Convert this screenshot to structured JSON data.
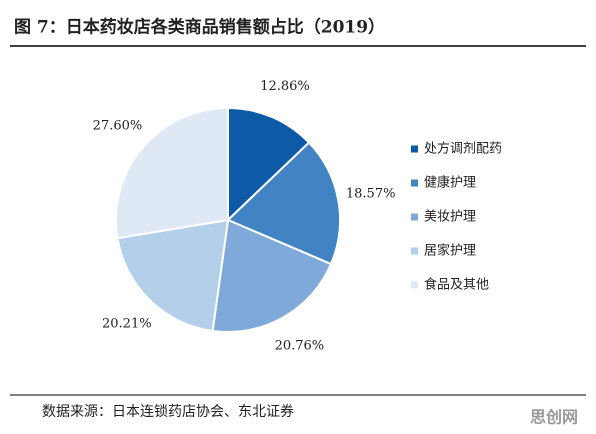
{
  "chart_data": {
    "type": "pie",
    "title": "图 7：日本药妆店各类商品销售额占比（2019）",
    "categories": [
      "处方调剂配药",
      "健康护理",
      "美妆护理",
      "居家护理",
      "食品及其他"
    ],
    "values": [
      12.86,
      18.57,
      20.76,
      20.21,
      27.6
    ],
    "value_labels": [
      "12.86%",
      "18.57%",
      "20.76%",
      "20.21%",
      "27.60%"
    ],
    "colors": [
      "#0d5aa6",
      "#4283c4",
      "#7fa9d8",
      "#b3cfea",
      "#dfe9f5"
    ],
    "legend": "right",
    "source": "数据来源：日本连锁药店协会、东北证券"
  },
  "watermark": "思创网"
}
